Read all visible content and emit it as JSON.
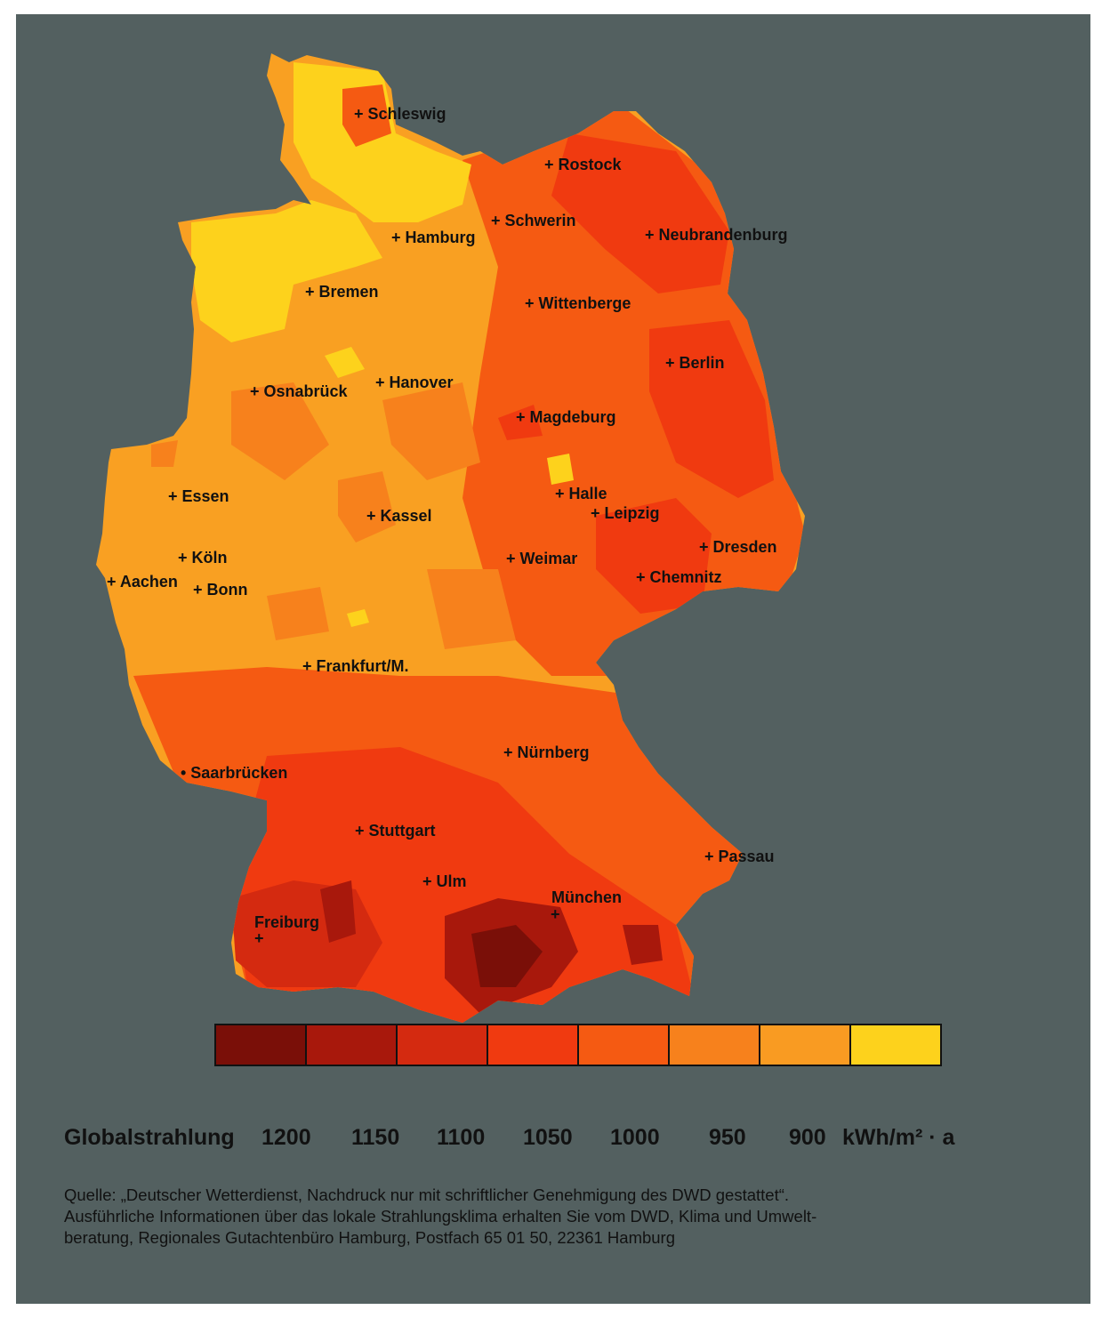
{
  "map": {
    "cities": [
      {
        "name": "Schleswig",
        "marker": "+"
      },
      {
        "name": "Rostock",
        "marker": "+"
      },
      {
        "name": "Schwerin",
        "marker": "+"
      },
      {
        "name": "Hamburg",
        "marker": "+"
      },
      {
        "name": "Neubrandenburg",
        "marker": "+"
      },
      {
        "name": "Bremen",
        "marker": "+"
      },
      {
        "name": "Wittenberge",
        "marker": "+"
      },
      {
        "name": "Berlin",
        "marker": "+"
      },
      {
        "name": "Osnabrück",
        "marker": "+"
      },
      {
        "name": "Hanover",
        "marker": "+"
      },
      {
        "name": "Magdeburg",
        "marker": "+"
      },
      {
        "name": "Halle",
        "marker": "+"
      },
      {
        "name": "Leipzig",
        "marker": "+"
      },
      {
        "name": "Essen",
        "marker": "+"
      },
      {
        "name": "Kassel",
        "marker": "+"
      },
      {
        "name": "Dresden",
        "marker": "+"
      },
      {
        "name": "Köln",
        "marker": "+"
      },
      {
        "name": "Weimar",
        "marker": "+"
      },
      {
        "name": "Aachen",
        "marker": "+"
      },
      {
        "name": "Bonn",
        "marker": "+"
      },
      {
        "name": "Chemnitz",
        "marker": "+"
      },
      {
        "name": "Frankfurt/M.",
        "marker": "+"
      },
      {
        "name": "Nürnberg",
        "marker": "+"
      },
      {
        "name": "Saarbrücken",
        "marker": "•"
      },
      {
        "name": "Stuttgart",
        "marker": "+"
      },
      {
        "name": "Passau",
        "marker": "+"
      },
      {
        "name": "Ulm",
        "marker": "+"
      },
      {
        "name": "München",
        "marker": "+"
      },
      {
        "name": "Freiburg",
        "marker": "+"
      }
    ]
  },
  "legend": {
    "title": "Globalstrahlung",
    "values": [
      "1200",
      "1150",
      "1100",
      "1050",
      "1000",
      "950",
      "900"
    ],
    "unit": "kWh/m² · a",
    "colors": [
      "#7a0f08",
      "#a8180c",
      "#d42a10",
      "#f03a10",
      "#f55a12",
      "#f7811c",
      "#f99b22",
      "#fdd21c"
    ]
  },
  "source": {
    "lines": [
      "Quelle: „Deutscher Wetterdienst, Nachdruck nur mit schriftlicher Genehmigung des DWD gestattet“.",
      "Ausführliche Informationen über das lokale Strahlungsklima erhalten Sie vom DWD, Klima und Umwelt-",
      "beratung, Regionales Gutachtenbüro Hamburg, Postfach 65 01 50, 22361 Hamburg"
    ]
  }
}
